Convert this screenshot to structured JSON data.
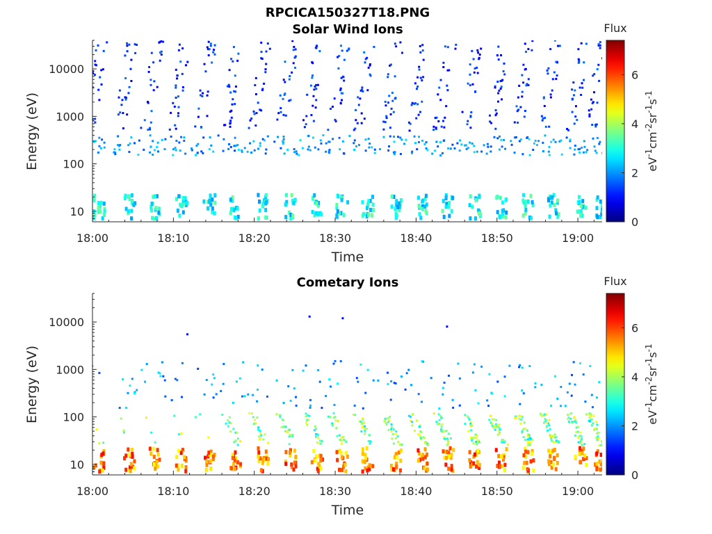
{
  "figure": {
    "title": "RPCICA150327T18.PNG"
  },
  "chart_data": [
    {
      "type": "heatmap",
      "title": "Solar Wind Ions",
      "xlabel": "Time",
      "ylabel": "Energy (eV)",
      "x_ticks": [
        "18:00",
        "18:10",
        "18:20",
        "18:30",
        "18:40",
        "18:50",
        "19:00"
      ],
      "x_tick_minutes": [
        0,
        10,
        20,
        30,
        40,
        50,
        60
      ],
      "xlim_minutes": [
        0,
        63
      ],
      "y_scale": "log",
      "y_ticks": [
        "10",
        "100",
        "1000",
        "10000"
      ],
      "y_tick_values": [
        10,
        100,
        1000,
        10000
      ],
      "ylim": [
        6,
        40000
      ],
      "colorbar": {
        "title": "Flux",
        "label": "eV-1cm-2sr-1s-1",
        "ticks": [
          "0",
          "2",
          "4",
          "6"
        ],
        "tick_values": [
          0,
          2,
          4,
          6
        ],
        "range": [
          0,
          7.4
        ]
      },
      "colormap": "jet",
      "sweep_centers_minutes": [
        0.6,
        4.3,
        7.5,
        10.8,
        14.2,
        17.5,
        20.8,
        24.2,
        27.5,
        30.6,
        33.8,
        37.2,
        40.5,
        43.7,
        47.0,
        50.3,
        53.6,
        56.8,
        60.1,
        62.5
      ],
      "bands": [
        {
          "energy": [
            7,
            22
          ],
          "flux": [
            2.0,
            3.6
          ],
          "description": "low-energy band"
        },
        {
          "energy": [
            150,
            400
          ],
          "flux": [
            1.4,
            2.6
          ],
          "description": "core band"
        },
        {
          "energy": [
            500,
            40000
          ],
          "flux": [
            0.7,
            1.8
          ],
          "description": "sparse high-energy points"
        }
      ]
    },
    {
      "type": "heatmap",
      "title": "Cometary Ions",
      "xlabel": "Time",
      "ylabel": "Energy (eV)",
      "x_ticks": [
        "18:00",
        "18:10",
        "18:20",
        "18:30",
        "18:40",
        "18:50",
        "19:00"
      ],
      "x_tick_minutes": [
        0,
        10,
        20,
        30,
        40,
        50,
        60
      ],
      "xlim_minutes": [
        0,
        63
      ],
      "y_scale": "log",
      "y_ticks": [
        "10",
        "100",
        "1000",
        "10000"
      ],
      "y_tick_values": [
        10,
        100,
        1000,
        10000
      ],
      "ylim": [
        6,
        40000
      ],
      "colorbar": {
        "title": "Flux",
        "label": "eV-1cm-2sr-1s-1",
        "ticks": [
          "0",
          "2",
          "4",
          "6"
        ],
        "tick_values": [
          0,
          2,
          4,
          6
        ],
        "range": [
          0,
          7.4
        ]
      },
      "colormap": "jet",
      "sweep_centers_minutes": [
        0.6,
        4.3,
        7.5,
        10.8,
        14.2,
        17.5,
        20.8,
        24.2,
        27.5,
        30.6,
        33.8,
        37.2,
        40.5,
        43.7,
        47.0,
        50.3,
        53.6,
        56.8,
        60.1,
        62.5
      ],
      "bands": [
        {
          "energy": [
            7,
            22
          ],
          "flux": [
            4.5,
            6.5
          ],
          "description": "intense low-energy band"
        },
        {
          "energy": [
            25,
            120
          ],
          "flux": [
            2.5,
            4.8
          ],
          "description": "dispersed band after 18:25"
        },
        {
          "energy": [
            150,
            1500
          ],
          "flux": [
            1.4,
            2.8
          ],
          "description": "sparse streaks"
        }
      ],
      "isolated_points": [
        {
          "minute": 26.7,
          "energy": 13000,
          "flux": 1.0
        },
        {
          "minute": 30.8,
          "energy": 12000,
          "flux": 1.0
        },
        {
          "minute": 43.7,
          "energy": 8000,
          "flux": 1.0
        },
        {
          "minute": 11.6,
          "energy": 5500,
          "flux": 1.0
        }
      ]
    }
  ]
}
